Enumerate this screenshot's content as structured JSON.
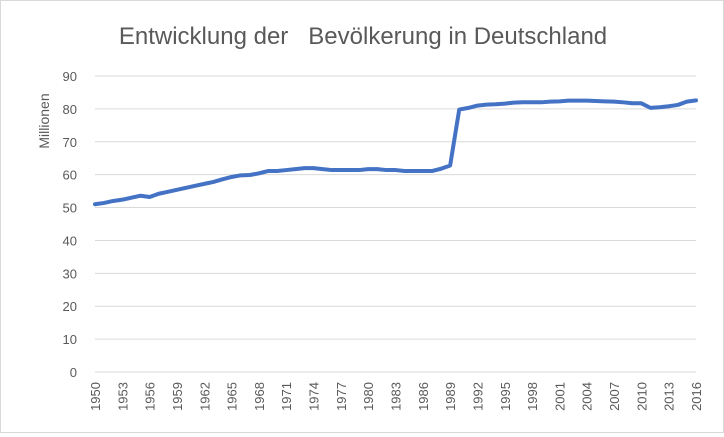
{
  "chart_data": {
    "type": "line",
    "title": "Entwicklung der   Bevölkerung in Deutschland",
    "ylabel": "Millionen",
    "xlabel": "",
    "ylim": [
      0,
      90
    ],
    "yticks": [
      0,
      10,
      20,
      30,
      40,
      50,
      60,
      70,
      80,
      90
    ],
    "xtick_labels": [
      "1950",
      "1953",
      "1956",
      "1959",
      "1962",
      "1965",
      "1968",
      "1971",
      "1974",
      "1977",
      "1980",
      "1983",
      "1986",
      "1989",
      "1992",
      "1995",
      "1998",
      "2001",
      "2004",
      "2007",
      "2010",
      "2013",
      "2016"
    ],
    "grid": true,
    "legend": "none",
    "series_color": "#4472c4",
    "series": [
      {
        "x": [
          1950,
          1951,
          1952,
          1953,
          1954,
          1955,
          1956,
          1957,
          1958,
          1959,
          1960,
          1961,
          1962,
          1963,
          1964,
          1965,
          1966,
          1967,
          1968,
          1969,
          1970,
          1971,
          1972,
          1973,
          1974,
          1975,
          1976,
          1977,
          1978,
          1979,
          1980,
          1981,
          1982,
          1983,
          1984,
          1985,
          1986,
          1987,
          1988,
          1989,
          1990,
          1991,
          1992,
          1993,
          1994,
          1995,
          1996,
          1997,
          1998,
          1999,
          2000,
          2001,
          2002,
          2003,
          2004,
          2005,
          2006,
          2007,
          2008,
          2009,
          2010,
          2011,
          2012,
          2013,
          2014,
          2015,
          2016
        ],
        "values": [
          51.0,
          51.4,
          52.0,
          52.4,
          53.0,
          53.6,
          53.2,
          54.2,
          54.8,
          55.4,
          56.0,
          56.6,
          57.2,
          57.8,
          58.6,
          59.3,
          59.8,
          59.9,
          60.4,
          61.1,
          61.1,
          61.4,
          61.7,
          62.0,
          62.0,
          61.7,
          61.4,
          61.4,
          61.4,
          61.4,
          61.7,
          61.7,
          61.4,
          61.4,
          61.1,
          61.1,
          61.1,
          61.1,
          61.8,
          62.8,
          79.8,
          80.3,
          81.0,
          81.3,
          81.4,
          81.6,
          81.9,
          82.0,
          82.0,
          82.0,
          82.2,
          82.3,
          82.5,
          82.5,
          82.5,
          82.4,
          82.3,
          82.2,
          82.0,
          81.7,
          81.7,
          80.3,
          80.5,
          80.8,
          81.2,
          82.2,
          82.6
        ]
      }
    ]
  }
}
